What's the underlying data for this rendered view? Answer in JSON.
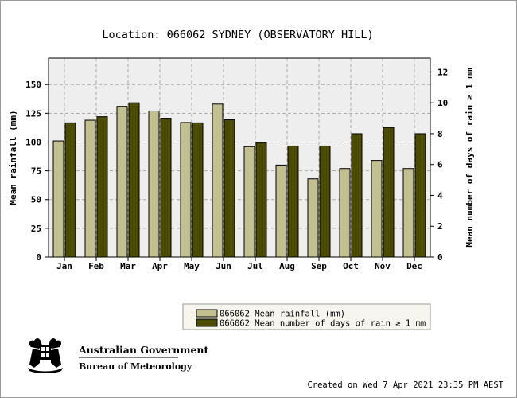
{
  "chart_data": {
    "type": "bar",
    "title": "Location: 066062 SYDNEY (OBSERVATORY HILL)",
    "categories": [
      "Jan",
      "Feb",
      "Mar",
      "Apr",
      "May",
      "Jun",
      "Jul",
      "Aug",
      "Sep",
      "Oct",
      "Nov",
      "Dec"
    ],
    "series": [
      {
        "name": "066062 Mean rainfall (mm)",
        "axis": "left",
        "color": "#c2c08e",
        "values": [
          101,
          119,
          131,
          127,
          117,
          133,
          96,
          80,
          68,
          77,
          84,
          77
        ]
      },
      {
        "name": "066062 Mean number of days of rain ≥ 1 mm",
        "axis": "right",
        "color": "#4c4c00",
        "values": [
          8.7,
          9.1,
          10.0,
          9.0,
          8.7,
          8.9,
          7.4,
          7.2,
          7.2,
          8.0,
          8.4,
          8.0
        ]
      }
    ],
    "ylabel": "Mean rainfall (mm)",
    "ylabel_right": "Mean number of days of rain ≥ 1 mm",
    "ylim": [
      0,
      173
    ],
    "ylim_right": [
      0,
      12.9
    ],
    "yticks": [
      0,
      25,
      50,
      75,
      100,
      125,
      150
    ],
    "yticks_right": [
      0,
      2,
      4,
      6,
      8,
      10,
      12
    ],
    "grid": true,
    "legend_position": "bottom-right"
  },
  "footer": {
    "created": "Created on Wed  7 Apr 2021 23:35 PM AEST",
    "gov_line1": "Australian Government",
    "gov_line2": "Bureau of Meteorology"
  },
  "colors": {
    "plot_bg": "#eeeeee",
    "grid": "#aaaaaa"
  }
}
